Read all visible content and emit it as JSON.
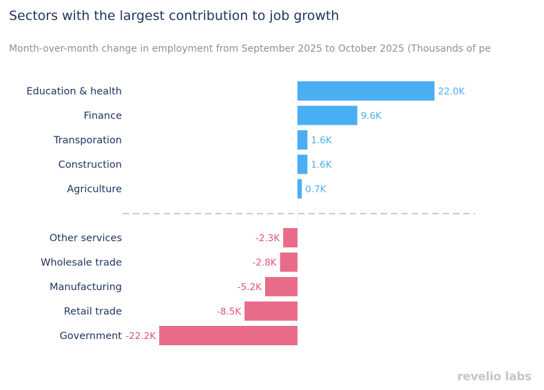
{
  "chart_data": {
    "type": "bar",
    "orientation": "horizontal",
    "title": "Sectors with the largest contribution to job growth",
    "subtitle": "Month-over-month change in employment from September 2025 to October 2025 (Thousands of pe",
    "groups": [
      {
        "categories": [
          "Education & health",
          "Finance",
          "Transporation",
          "Construction",
          "Agriculture"
        ],
        "values": [
          22.0,
          9.6,
          1.6,
          1.6,
          0.7
        ],
        "labels": [
          "22.0K",
          "9.6K",
          "1.6K",
          "1.6K",
          "0.7K"
        ],
        "color": "#4aaef3"
      },
      {
        "categories": [
          "Other services",
          "Wholesale trade",
          "Manufacturing",
          "Retail trade",
          "Government"
        ],
        "values": [
          -2.3,
          -2.8,
          -5.2,
          -8.5,
          -22.2
        ],
        "labels": [
          "-2.3K",
          "-2.8K",
          "-5.2K",
          "-8.5K",
          "-22.2K"
        ],
        "color": "#e86c89"
      }
    ],
    "label_color_positive": "#4aaef3",
    "label_color_negative": "#e0557a",
    "grid": false,
    "separator": "dashed"
  },
  "logo": "revelio labs"
}
